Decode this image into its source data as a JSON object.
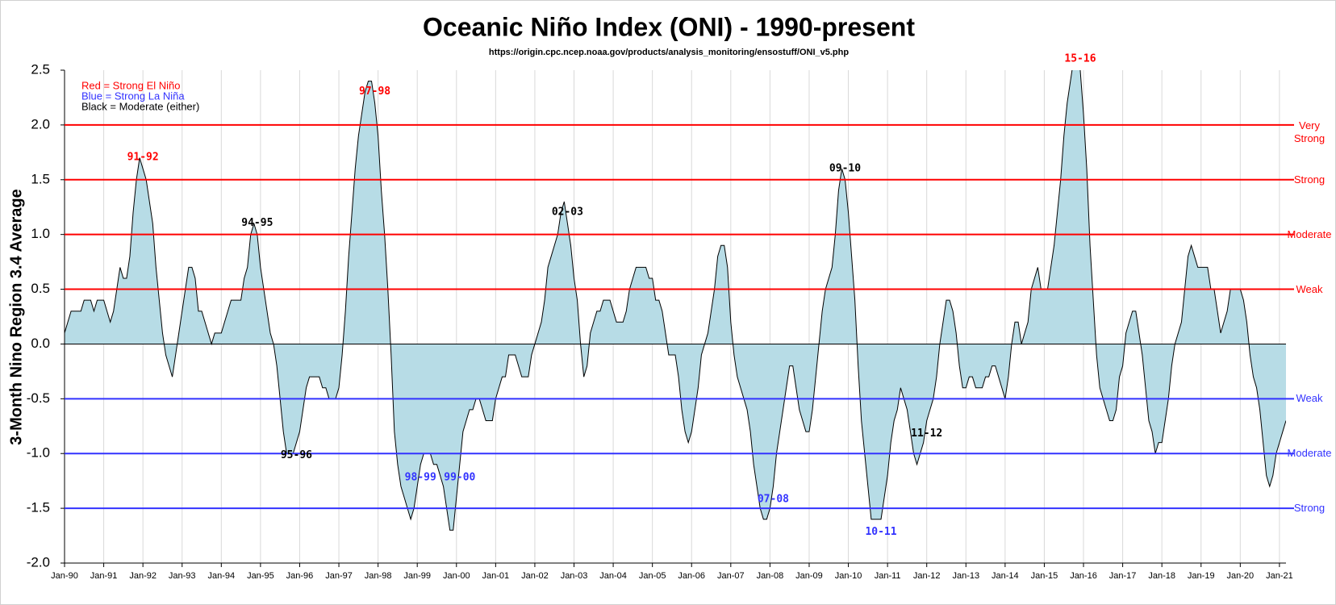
{
  "chart_data": {
    "type": "area",
    "title": "Oceanic Niño Index (ONI) - 1990-present",
    "subtitle": "https://origin.cpc.ncep.noaa.gov/products/analysis_monitoring/ensostuff/ONI_v5.php",
    "y_label": "3-Month Nino Region 3.4 Average",
    "notes": [
      {
        "text": "Red = Strong  El Niño",
        "color": "#ff0000"
      },
      {
        "text": "Blue = Strong  La Niña",
        "color": "#3333ff"
      },
      {
        "text": "Black = Moderate  (either)",
        "color": "#000000"
      }
    ],
    "fill_color": "#b7dce6",
    "line_color": "#000000",
    "ylim": [
      -2,
      2.5
    ],
    "yticks": [
      {
        "value": -2,
        "label": "-2.0"
      },
      -1.5,
      {
        "value": -1,
        "label": "-1.0"
      },
      -0.5,
      {
        "value": 0,
        "label": "0.0"
      },
      0.5,
      {
        "value": 1,
        "label": "1.0"
      },
      1.5,
      {
        "value": 2,
        "label": "2.0"
      },
      2.5
    ],
    "xlim": [
      "1990-01",
      "2021-03"
    ],
    "xticks": [
      {
        "value": "1990-01",
        "label": "Jan-90"
      },
      {
        "value": "1991-01",
        "label": "Jan-91"
      },
      {
        "value": "1992-01",
        "label": "Jan-92"
      },
      {
        "value": "1993-01",
        "label": "Jan-93"
      },
      {
        "value": "1994-01",
        "label": "Jan-94"
      },
      {
        "value": "1995-01",
        "label": "Jan-95"
      },
      {
        "value": "1996-01",
        "label": "Jan-96"
      },
      {
        "value": "1997-01",
        "label": "Jan-97"
      },
      {
        "value": "1998-01",
        "label": "Jan-98"
      },
      {
        "value": "1999-01",
        "label": "Jan-99"
      },
      {
        "value": "2000-01",
        "label": "Jan-00"
      },
      {
        "value": "2001-01",
        "label": "Jan-01"
      },
      {
        "value": "2002-01",
        "label": "Jan-02"
      },
      {
        "value": "2003-01",
        "label": "Jan-03"
      },
      {
        "value": "2004-01",
        "label": "Jan-04"
      },
      {
        "value": "2005-01",
        "label": "Jan-05"
      },
      {
        "value": "2006-01",
        "label": "Jan-06"
      },
      {
        "value": "2007-01",
        "label": "Jan-07"
      },
      {
        "value": "2008-01",
        "label": "Jan-08"
      },
      {
        "value": "2009-01",
        "label": "Jan-09"
      },
      {
        "value": "2010-01",
        "label": "Jan-10"
      },
      {
        "value": "2011-01",
        "label": "Jan-11"
      },
      {
        "value": "2012-01",
        "label": "Jan-12"
      },
      {
        "value": "2013-01",
        "label": "Jan-13"
      },
      {
        "value": "2014-01",
        "label": "Jan-14"
      },
      {
        "value": "2015-01",
        "label": "Jan-15"
      },
      {
        "value": "2016-01",
        "label": "Jan-16"
      },
      {
        "value": "2017-01",
        "label": "Jan-17"
      },
      {
        "value": "2018-01",
        "label": "Jan-18"
      },
      {
        "value": "2019-01",
        "label": "Jan-19"
      },
      {
        "value": "2020-01",
        "label": "Jan-20"
      },
      {
        "value": "2021-01",
        "label": "Jan-21"
      }
    ],
    "grid": true,
    "thresholds": [
      {
        "value": 2,
        "label": "Very Strong",
        "color": "#ff0000"
      },
      {
        "value": 1.5,
        "label": "Strong",
        "color": "#ff0000"
      },
      {
        "value": 1,
        "label": "Moderate",
        "color": "#ff0000"
      },
      {
        "value": 0.5,
        "label": "Weak",
        "color": "#ff0000"
      },
      {
        "value": -0.5,
        "label": "Weak",
        "color": "#3333ff"
      },
      {
        "value": -1,
        "label": "Moderate",
        "color": "#3333ff"
      },
      {
        "value": -1.5,
        "label": "Strong",
        "color": "#3333ff"
      }
    ],
    "annotations": [
      {
        "text": "91-92",
        "x": "1992-01",
        "color": "#ff0000"
      },
      {
        "text": "94-95",
        "x": "1994-12",
        "color": "#000000"
      },
      {
        "text": "95-96",
        "x": "1995-12",
        "color": "#000000"
      },
      {
        "text": "97-98",
        "x": "1997-12",
        "color": "#ff0000"
      },
      {
        "text": "98-99",
        "x": "1999-02",
        "color": "#3333ff"
      },
      {
        "text": "99-00",
        "x": "2000-02",
        "color": "#3333ff"
      },
      {
        "text": "02-03",
        "x": "2002-11",
        "color": "#000000"
      },
      {
        "text": "07-08",
        "x": "2008-02",
        "color": "#3333ff"
      },
      {
        "text": "09-10",
        "x": "2009-12",
        "color": "#000000"
      },
      {
        "text": "10-11",
        "x": "2010-11",
        "color": "#3333ff"
      },
      {
        "text": "11-12",
        "x": "2012-01",
        "color": "#000000"
      },
      {
        "text": "15-16",
        "x": "2015-12",
        "color": "#ff0000"
      }
    ],
    "x": [
      "1990-01",
      "1990-02",
      "1990-03",
      "1990-04",
      "1990-05",
      "1990-06",
      "1990-07",
      "1990-08",
      "1990-09",
      "1990-10",
      "1990-11",
      "1990-12",
      "1991-01",
      "1991-02",
      "1991-03",
      "1991-04",
      "1991-05",
      "1991-06",
      "1991-07",
      "1991-08",
      "1991-09",
      "1991-10",
      "1991-11",
      "1991-12",
      "1992-01",
      "1992-02",
      "1992-03",
      "1992-04",
      "1992-05",
      "1992-06",
      "1992-07",
      "1992-08",
      "1992-09",
      "1992-10",
      "1992-11",
      "1992-12",
      "1993-01",
      "1993-02",
      "1993-03",
      "1993-04",
      "1993-05",
      "1993-06",
      "1993-07",
      "1993-08",
      "1993-09",
      "1993-10",
      "1993-11",
      "1993-12",
      "1994-01",
      "1994-02",
      "1994-03",
      "1994-04",
      "1994-05",
      "1994-06",
      "1994-07",
      "1994-08",
      "1994-09",
      "1994-10",
      "1994-11",
      "1994-12",
      "1995-01",
      "1995-02",
      "1995-03",
      "1995-04",
      "1995-05",
      "1995-06",
      "1995-07",
      "1995-08",
      "1995-09",
      "1995-10",
      "1995-11",
      "1995-12",
      "1996-01",
      "1996-02",
      "1996-03",
      "1996-04",
      "1996-05",
      "1996-06",
      "1996-07",
      "1996-08",
      "1996-09",
      "1996-10",
      "1996-11",
      "1996-12",
      "1997-01",
      "1997-02",
      "1997-03",
      "1997-04",
      "1997-05",
      "1997-06",
      "1997-07",
      "1997-08",
      "1997-09",
      "1997-10",
      "1997-11",
      "1997-12",
      "1998-01",
      "1998-02",
      "1998-03",
      "1998-04",
      "1998-05",
      "1998-06",
      "1998-07",
      "1998-08",
      "1998-09",
      "1998-10",
      "1998-11",
      "1998-12",
      "1999-01",
      "1999-02",
      "1999-03",
      "1999-04",
      "1999-05",
      "1999-06",
      "1999-07",
      "1999-08",
      "1999-09",
      "1999-10",
      "1999-11",
      "1999-12",
      "2000-01",
      "2000-02",
      "2000-03",
      "2000-04",
      "2000-05",
      "2000-06",
      "2000-07",
      "2000-08",
      "2000-09",
      "2000-10",
      "2000-11",
      "2000-12",
      "2001-01",
      "2001-02",
      "2001-03",
      "2001-04",
      "2001-05",
      "2001-06",
      "2001-07",
      "2001-08",
      "2001-09",
      "2001-10",
      "2001-11",
      "2001-12",
      "2002-01",
      "2002-02",
      "2002-03",
      "2002-04",
      "2002-05",
      "2002-06",
      "2002-07",
      "2002-08",
      "2002-09",
      "2002-10",
      "2002-11",
      "2002-12",
      "2003-01",
      "2003-02",
      "2003-03",
      "2003-04",
      "2003-05",
      "2003-06",
      "2003-07",
      "2003-08",
      "2003-09",
      "2003-10",
      "2003-11",
      "2003-12",
      "2004-01",
      "2004-02",
      "2004-03",
      "2004-04",
      "2004-05",
      "2004-06",
      "2004-07",
      "2004-08",
      "2004-09",
      "2004-10",
      "2004-11",
      "2004-12",
      "2005-01",
      "2005-02",
      "2005-03",
      "2005-04",
      "2005-05",
      "2005-06",
      "2005-07",
      "2005-08",
      "2005-09",
      "2005-10",
      "2005-11",
      "2005-12",
      "2006-01",
      "2006-02",
      "2006-03",
      "2006-04",
      "2006-05",
      "2006-06",
      "2006-07",
      "2006-08",
      "2006-09",
      "2006-10",
      "2006-11",
      "2006-12",
      "2007-01",
      "2007-02",
      "2007-03",
      "2007-04",
      "2007-05",
      "2007-06",
      "2007-07",
      "2007-08",
      "2007-09",
      "2007-10",
      "2007-11",
      "2007-12",
      "2008-01",
      "2008-02",
      "2008-03",
      "2008-04",
      "2008-05",
      "2008-06",
      "2008-07",
      "2008-08",
      "2008-09",
      "2008-10",
      "2008-11",
      "2008-12",
      "2009-01",
      "2009-02",
      "2009-03",
      "2009-04",
      "2009-05",
      "2009-06",
      "2009-07",
      "2009-08",
      "2009-09",
      "2009-10",
      "2009-11",
      "2009-12",
      "2010-01",
      "2010-02",
      "2010-03",
      "2010-04",
      "2010-05",
      "2010-06",
      "2010-07",
      "2010-08",
      "2010-09",
      "2010-10",
      "2010-11",
      "2010-12",
      "2011-01",
      "2011-02",
      "2011-03",
      "2011-04",
      "2011-05",
      "2011-06",
      "2011-07",
      "2011-08",
      "2011-09",
      "2011-10",
      "2011-11",
      "2011-12",
      "2012-01",
      "2012-02",
      "2012-03",
      "2012-04",
      "2012-05",
      "2012-06",
      "2012-07",
      "2012-08",
      "2012-09",
      "2012-10",
      "2012-11",
      "2012-12",
      "2013-01",
      "2013-02",
      "2013-03",
      "2013-04",
      "2013-05",
      "2013-06",
      "2013-07",
      "2013-08",
      "2013-09",
      "2013-10",
      "2013-11",
      "2013-12",
      "2014-01",
      "2014-02",
      "2014-03",
      "2014-04",
      "2014-05",
      "2014-06",
      "2014-07",
      "2014-08",
      "2014-09",
      "2014-10",
      "2014-11",
      "2014-12",
      "2015-01",
      "2015-02",
      "2015-03",
      "2015-04",
      "2015-05",
      "2015-06",
      "2015-07",
      "2015-08",
      "2015-09",
      "2015-10",
      "2015-11",
      "2015-12",
      "2016-01",
      "2016-02",
      "2016-03",
      "2016-04",
      "2016-05",
      "2016-06",
      "2016-07",
      "2016-08",
      "2016-09",
      "2016-10",
      "2016-11",
      "2016-12",
      "2017-01",
      "2017-02",
      "2017-03",
      "2017-04",
      "2017-05",
      "2017-06",
      "2017-07",
      "2017-08",
      "2017-09",
      "2017-10",
      "2017-11",
      "2017-12",
      "2018-01",
      "2018-02",
      "2018-03",
      "2018-04",
      "2018-05",
      "2018-06",
      "2018-07",
      "2018-08",
      "2018-09",
      "2018-10",
      "2018-11",
      "2018-12",
      "2019-01",
      "2019-02",
      "2019-03",
      "2019-04",
      "2019-05",
      "2019-06",
      "2019-07",
      "2019-08",
      "2019-09",
      "2019-10",
      "2019-11",
      "2019-12",
      "2020-01",
      "2020-02",
      "2020-03",
      "2020-04",
      "2020-05",
      "2020-06",
      "2020-07",
      "2020-08",
      "2020-09",
      "2020-10",
      "2020-11",
      "2020-12",
      "2021-01",
      "2021-02",
      "2021-03"
    ],
    "values": [
      0.1,
      0.2,
      0.3,
      0.3,
      0.3,
      0.3,
      0.4,
      0.4,
      0.4,
      0.3,
      0.4,
      0.4,
      0.4,
      0.3,
      0.2,
      0.3,
      0.5,
      0.7,
      0.6,
      0.6,
      0.8,
      1.2,
      1.5,
      1.7,
      1.6,
      1.5,
      1.3,
      1.1,
      0.7,
      0.4,
      0.1,
      -0.1,
      -0.2,
      -0.3,
      -0.1,
      0.1,
      0.3,
      0.5,
      0.7,
      0.7,
      0.6,
      0.3,
      0.3,
      0.2,
      0.1,
      0.0,
      0.1,
      0.1,
      0.1,
      0.2,
      0.3,
      0.4,
      0.4,
      0.4,
      0.4,
      0.6,
      0.7,
      1.0,
      1.1,
      1.0,
      0.7,
      0.5,
      0.3,
      0.1,
      0.0,
      -0.2,
      -0.5,
      -0.8,
      -1.0,
      -1.0,
      -1.0,
      -0.9,
      -0.8,
      -0.6,
      -0.4,
      -0.3,
      -0.3,
      -0.3,
      -0.3,
      -0.4,
      -0.4,
      -0.5,
      -0.5,
      -0.5,
      -0.4,
      -0.1,
      0.3,
      0.8,
      1.2,
      1.6,
      1.9,
      2.1,
      2.3,
      2.4,
      2.4,
      2.2,
      1.9,
      1.4,
      1.0,
      0.5,
      -0.1,
      -0.8,
      -1.1,
      -1.3,
      -1.4,
      -1.5,
      -1.6,
      -1.5,
      -1.3,
      -1.1,
      -1.0,
      -1.0,
      -1.0,
      -1.1,
      -1.1,
      -1.2,
      -1.3,
      -1.5,
      -1.7,
      -1.7,
      -1.4,
      -1.1,
      -0.8,
      -0.7,
      -0.6,
      -0.6,
      -0.5,
      -0.5,
      -0.6,
      -0.7,
      -0.7,
      -0.7,
      -0.5,
      -0.4,
      -0.3,
      -0.3,
      -0.1,
      -0.1,
      -0.1,
      -0.2,
      -0.3,
      -0.3,
      -0.3,
      -0.1,
      0.0,
      0.1,
      0.2,
      0.4,
      0.7,
      0.8,
      0.9,
      1.0,
      1.2,
      1.3,
      1.1,
      0.9,
      0.6,
      0.4,
      0.0,
      -0.3,
      -0.2,
      0.1,
      0.2,
      0.3,
      0.3,
      0.4,
      0.4,
      0.4,
      0.3,
      0.2,
      0.2,
      0.2,
      0.3,
      0.5,
      0.6,
      0.7,
      0.7,
      0.7,
      0.7,
      0.6,
      0.6,
      0.4,
      0.4,
      0.3,
      0.1,
      -0.1,
      -0.1,
      -0.1,
      -0.3,
      -0.6,
      -0.8,
      -0.9,
      -0.8,
      -0.6,
      -0.4,
      -0.1,
      0.0,
      0.1,
      0.3,
      0.5,
      0.8,
      0.9,
      0.9,
      0.7,
      0.2,
      -0.1,
      -0.3,
      -0.4,
      -0.5,
      -0.6,
      -0.8,
      -1.1,
      -1.3,
      -1.5,
      -1.6,
      -1.6,
      -1.5,
      -1.3,
      -1.0,
      -0.8,
      -0.6,
      -0.4,
      -0.2,
      -0.2,
      -0.4,
      -0.6,
      -0.7,
      -0.8,
      -0.8,
      -0.6,
      -0.3,
      0.0,
      0.3,
      0.5,
      0.6,
      0.7,
      1.0,
      1.4,
      1.6,
      1.5,
      1.2,
      0.8,
      0.4,
      -0.2,
      -0.7,
      -1.0,
      -1.3,
      -1.6,
      -1.6,
      -1.6,
      -1.6,
      -1.4,
      -1.2,
      -0.9,
      -0.7,
      -0.6,
      -0.4,
      -0.5,
      -0.6,
      -0.8,
      -1.0,
      -1.1,
      -1.0,
      -0.9,
      -0.7,
      -0.6,
      -0.5,
      -0.3,
      0.0,
      0.2,
      0.4,
      0.4,
      0.3,
      0.1,
      -0.2,
      -0.4,
      -0.4,
      -0.3,
      -0.3,
      -0.4,
      -0.4,
      -0.4,
      -0.3,
      -0.3,
      -0.2,
      -0.2,
      -0.3,
      -0.4,
      -0.5,
      -0.3,
      0.0,
      0.2,
      0.2,
      0.0,
      0.1,
      0.2,
      0.5,
      0.6,
      0.7,
      0.5,
      0.5,
      0.5,
      0.7,
      0.9,
      1.2,
      1.5,
      1.9,
      2.2,
      2.4,
      2.6,
      2.6,
      2.5,
      2.1,
      1.6,
      0.9,
      0.4,
      -0.1,
      -0.4,
      -0.5,
      -0.6,
      -0.7,
      -0.7,
      -0.6,
      -0.3,
      -0.2,
      0.1,
      0.2,
      0.3,
      0.3,
      0.1,
      -0.1,
      -0.4,
      -0.7,
      -0.8,
      -1.0,
      -0.9,
      -0.9,
      -0.7,
      -0.5,
      -0.2,
      0.0,
      0.1,
      0.2,
      0.5,
      0.8,
      0.9,
      0.8,
      0.7,
      0.7,
      0.7,
      0.7,
      0.5,
      0.5,
      0.3,
      0.1,
      0.2,
      0.3,
      0.5,
      0.5,
      0.5,
      0.5,
      0.4,
      0.2,
      -0.1,
      -0.3,
      -0.4,
      -0.6,
      -0.9,
      -1.2,
      -1.3,
      -1.2,
      -1.0,
      -0.9,
      -0.8,
      -0.7
    ]
  }
}
